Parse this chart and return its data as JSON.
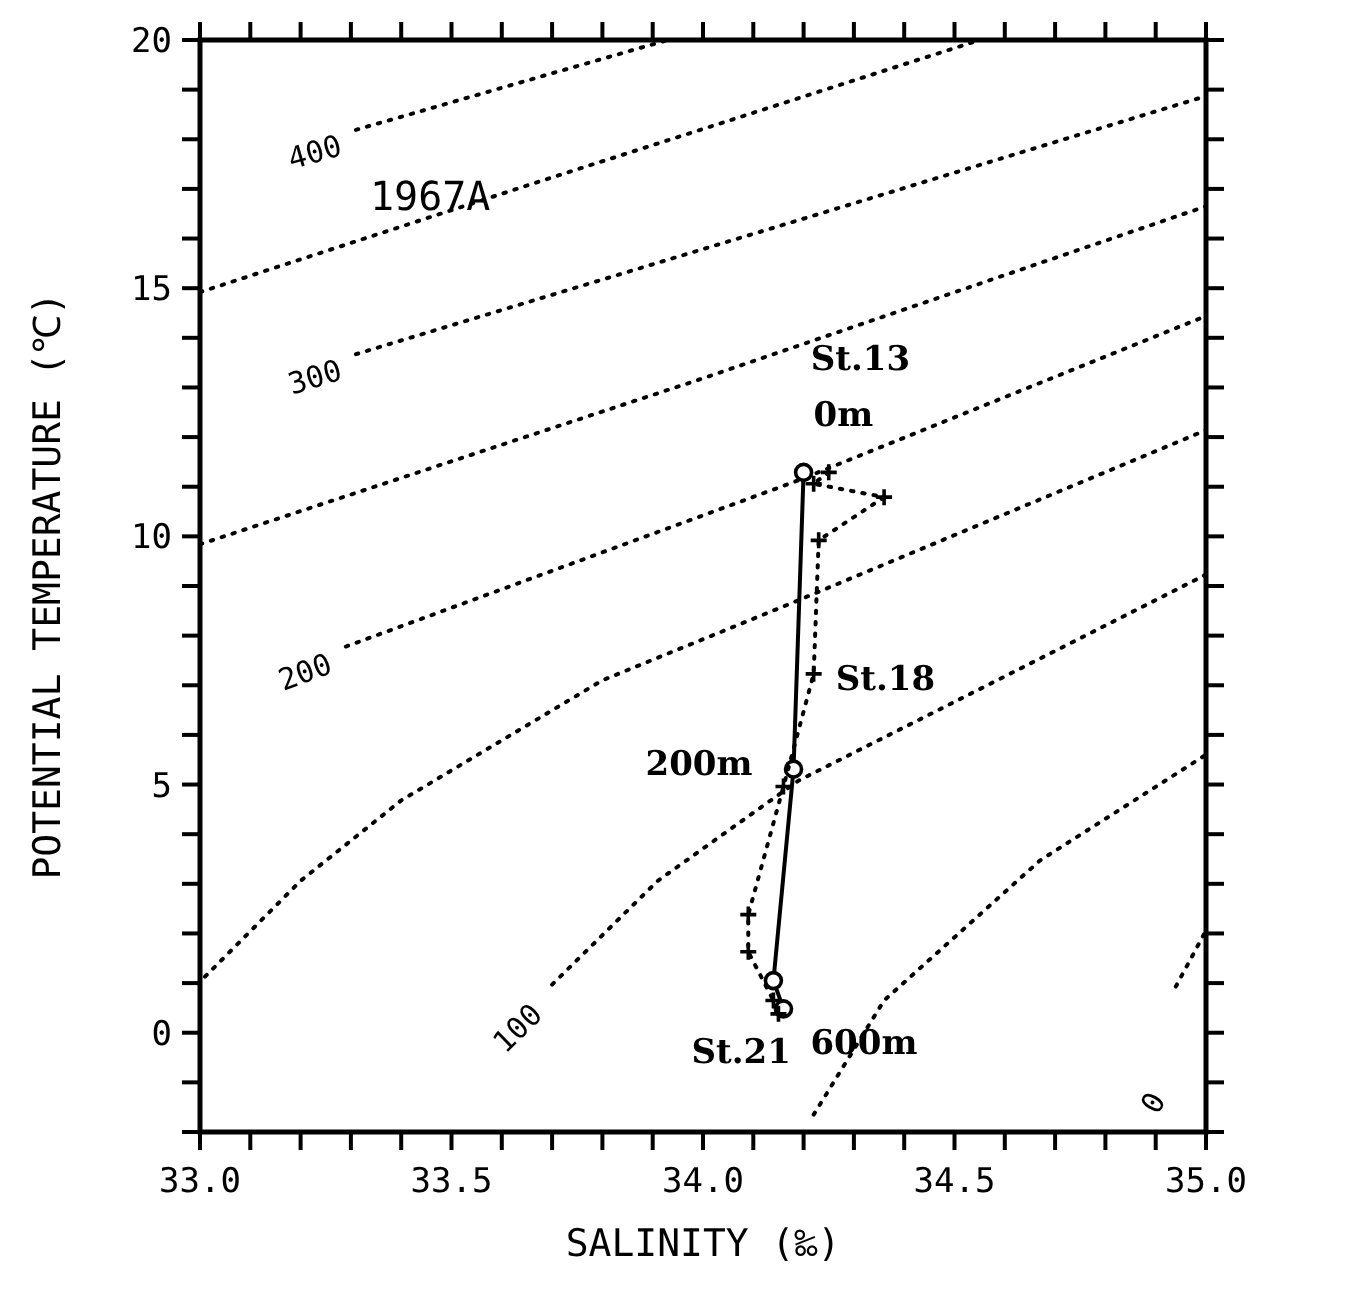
{
  "chart_data": {
    "type": "line",
    "xlabel": "SALINITY (‰)",
    "ylabel": "POTENTIAL TEMPERATURE (℃)",
    "xlim": [
      33.0,
      35.0
    ],
    "ylim": [
      -2,
      20
    ],
    "xticks": [
      {
        "value": 33.0,
        "label": "33.0"
      },
      {
        "value": 33.1,
        "label": null
      },
      {
        "value": 33.2,
        "label": null
      },
      {
        "value": 33.3,
        "label": null
      },
      {
        "value": 33.4,
        "label": null
      },
      {
        "value": 33.5,
        "label": "33.5"
      },
      {
        "value": 33.6,
        "label": null
      },
      {
        "value": 33.7,
        "label": null
      },
      {
        "value": 33.8,
        "label": null
      },
      {
        "value": 33.9,
        "label": null
      },
      {
        "value": 34.0,
        "label": "34.0"
      },
      {
        "value": 34.1,
        "label": null
      },
      {
        "value": 34.2,
        "label": null
      },
      {
        "value": 34.3,
        "label": null
      },
      {
        "value": 34.4,
        "label": null
      },
      {
        "value": 34.5,
        "label": "34.5"
      },
      {
        "value": 34.6,
        "label": null
      },
      {
        "value": 34.7,
        "label": null
      },
      {
        "value": 34.8,
        "label": null
      },
      {
        "value": 34.9,
        "label": null
      },
      {
        "value": 35.0,
        "label": "35.0"
      }
    ],
    "yticks": [
      {
        "value": -2,
        "label": null
      },
      {
        "value": -1,
        "label": null
      },
      0,
      {
        "value": 1,
        "label": null
      },
      {
        "value": 2,
        "label": null
      },
      {
        "value": 3,
        "label": null
      },
      {
        "value": 4,
        "label": null
      },
      5,
      {
        "value": 6,
        "label": null
      },
      {
        "value": 7,
        "label": null
      },
      {
        "value": 8,
        "label": null
      },
      {
        "value": 9,
        "label": null
      },
      10,
      {
        "value": 11,
        "label": null
      },
      {
        "value": 12,
        "label": null
      },
      {
        "value": 13,
        "label": null
      },
      {
        "value": 14,
        "label": null
      },
      15,
      {
        "value": 16,
        "label": null
      },
      {
        "value": 17,
        "label": null
      },
      {
        "value": 18,
        "label": null
      },
      {
        "value": 19,
        "label": null
      },
      20
    ],
    "grid": false,
    "series": [
      {
        "name": "400",
        "color": "#000000",
        "line_style": "dotted",
        "marker": "none",
        "x": [
          33.31,
          33.93
        ],
        "values": [
          18.19,
          20.0
        ]
      },
      {
        "color": "#000000",
        "line_style": "dotted",
        "marker": "none",
        "x": [
          33.0,
          33.66,
          34.55
        ],
        "values": [
          14.92,
          17.1,
          20.0
        ]
      },
      {
        "name": "300",
        "color": "#000000",
        "line_style": "dotted",
        "marker": "none",
        "x": [
          33.31,
          34.19,
          35.0
        ],
        "values": [
          13.67,
          16.37,
          18.87
        ]
      },
      {
        "color": "#000000",
        "line_style": "dotted",
        "marker": "none",
        "x": [
          33.0,
          33.99,
          35.0
        ],
        "values": [
          9.84,
          13.15,
          16.65
        ]
      },
      {
        "name": "200",
        "color": "#000000",
        "line_style": "dotted",
        "marker": "none",
        "x": [
          33.29,
          34.19,
          35.0
        ],
        "values": [
          7.78,
          11.13,
          14.44
        ]
      },
      {
        "color": "#000000",
        "line_style": "dotted",
        "marker": "none",
        "x": [
          33.01,
          33.2,
          33.4,
          33.8,
          34.17,
          35.0
        ],
        "values": [
          1.13,
          3.06,
          4.68,
          7.1,
          8.63,
          12.14
        ]
      },
      {
        "name": "100",
        "color": "#000000",
        "line_style": "dotted",
        "marker": "none",
        "x": [
          33.7,
          33.91,
          34.19,
          34.45,
          35.0
        ],
        "values": [
          0.97,
          3.06,
          5.08,
          6.41,
          9.23
        ]
      },
      {
        "color": "#000000",
        "line_style": "dotted",
        "marker": "none",
        "x": [
          34.22,
          34.36,
          34.67,
          35.0
        ],
        "values": [
          -1.65,
          0.65,
          3.47,
          5.6
        ]
      },
      {
        "color": "#000000",
        "line_style": "dotted",
        "marker": "none",
        "x": [
          34.94,
          35.0
        ],
        "values": [
          0.93,
          2.06
        ]
      },
      {
        "color": "#000000",
        "line_style": "solid",
        "marker": "circle",
        "x": [
          34.2,
          34.18,
          34.14,
          34.16
        ],
        "values": [
          11.29,
          5.31,
          1.05,
          0.48
        ]
      },
      {
        "color": "#000000",
        "line_style": "dotted",
        "marker": "cross",
        "x": [
          34.25,
          34.22,
          34.36,
          34.23,
          34.22,
          34.16,
          34.09,
          34.09,
          34.14,
          34.15
        ],
        "values": [
          11.29,
          11.06,
          10.79,
          9.92,
          7.23,
          4.96,
          2.38,
          1.63,
          0.65,
          0.38
        ]
      }
    ],
    "annotations": [
      "1967A",
      {
        "text": "St.13",
        "x": 34.25,
        "y": 11.29
      },
      {
        "text": "0m",
        "x": 34.2,
        "y": 11.29
      },
      {
        "text": "St.18",
        "x": 34.22,
        "y": 7.23
      },
      {
        "text": "200m",
        "x": 34.18,
        "y": 5.31
      },
      {
        "text": "St.21",
        "x": 34.16,
        "y": 0.48
      },
      {
        "text": "600m",
        "x": 34.15,
        "y": 0.38
      },
      "0"
    ]
  }
}
